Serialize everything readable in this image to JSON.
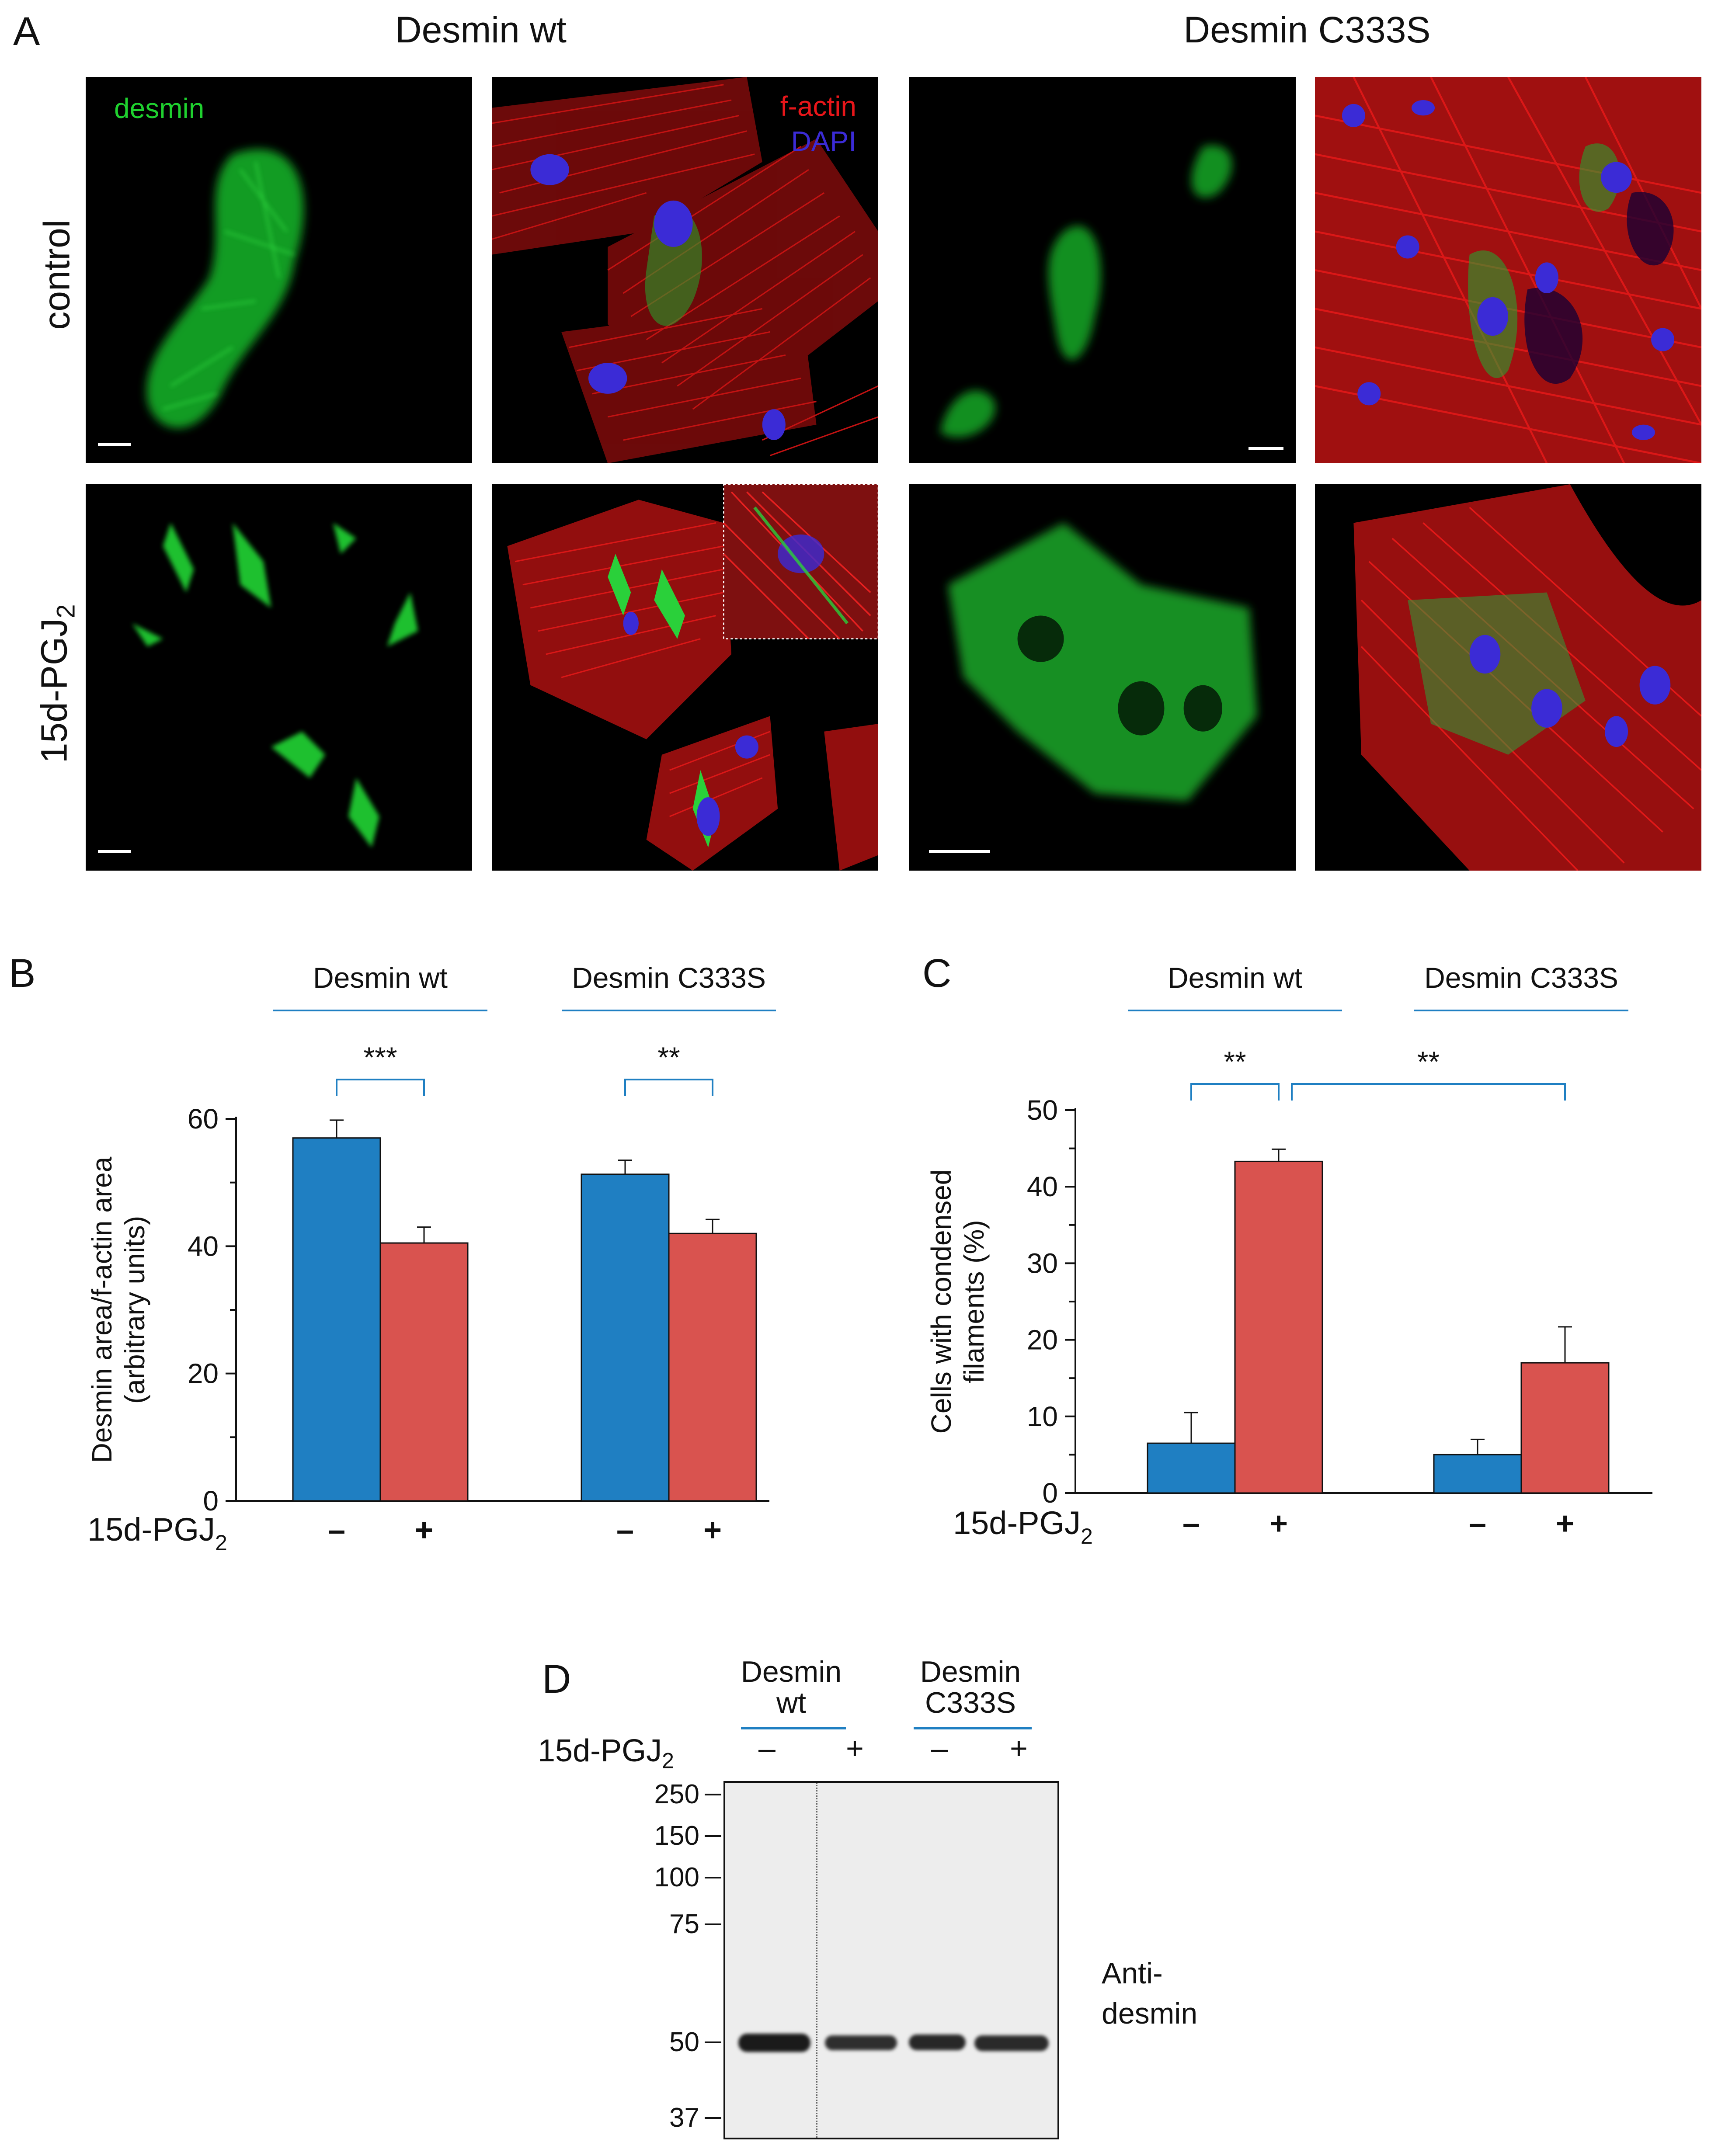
{
  "panels": {
    "A": "A",
    "B": "B",
    "C": "C",
    "D": "D"
  },
  "panelA": {
    "col_headers": [
      "Desmin wt",
      "Desmin C333S"
    ],
    "row_headers": [
      "control",
      "15d-PGJ"
    ],
    "row_sub": "2",
    "stain_labels": {
      "desmin": "desmin",
      "factin": "f-actin",
      "dapi": "DAPI"
    },
    "colors": {
      "green": "#1fd12f",
      "red": "#e8161a",
      "blue": "#3b2bd6"
    }
  },
  "chart_data": [
    {
      "id": "B",
      "type": "bar",
      "group_labels": [
        "Desmin wt",
        "Desmin C333S"
      ],
      "ylabel": "Desmin area/f-actin area (arbitrary units)",
      "ylabel_lines": [
        "Desmin area/f-actin area",
        "(arbitrary units)"
      ],
      "ylim": [
        0,
        60
      ],
      "yticks": [
        0,
        20,
        40,
        60
      ],
      "treatment_label": "15d-PGJ",
      "treatment_sub": "2",
      "categories": [
        "–",
        "+",
        "–",
        "+"
      ],
      "values": [
        57,
        40.5,
        51.3,
        42
      ],
      "errors": [
        2.8,
        2.5,
        2.2,
        2.2
      ],
      "colors": [
        "#1f7fc2",
        "#d9534f",
        "#1f7fc2",
        "#d9534f"
      ],
      "significance": [
        {
          "from": 0,
          "to": 1,
          "label": "***"
        },
        {
          "from": 2,
          "to": 3,
          "label": "**"
        }
      ]
    },
    {
      "id": "C",
      "type": "bar",
      "group_labels": [
        "Desmin wt",
        "Desmin C333S"
      ],
      "ylabel": "Cells with condensed filaments (%)",
      "ylabel_lines": [
        "Cells with condensed",
        "filaments (%)"
      ],
      "ylim": [
        0,
        50
      ],
      "yticks": [
        0,
        10,
        20,
        30,
        40,
        50
      ],
      "treatment_label": "15d-PGJ",
      "treatment_sub": "2",
      "categories": [
        "–",
        "+",
        "–",
        "+"
      ],
      "values": [
        6.5,
        43.3,
        5,
        17
      ],
      "errors": [
        4,
        1.6,
        2,
        4.7
      ],
      "colors": [
        "#1f7fc2",
        "#d9534f",
        "#1f7fc2",
        "#d9534f"
      ],
      "significance": [
        {
          "from": 0,
          "to": 1,
          "label": "**"
        },
        {
          "from": 1,
          "to": 3,
          "label": "**"
        }
      ]
    }
  ],
  "panelD": {
    "group_labels": [
      [
        "Desmin",
        "wt"
      ],
      [
        "Desmin",
        "C333S"
      ]
    ],
    "treatment_label": "15d-PGJ",
    "treatment_sub": "2",
    "lanes": [
      "–",
      "+",
      "–",
      "+"
    ],
    "markers": [
      "250",
      "150",
      "100",
      "75",
      "50",
      "37"
    ],
    "antibody_lines": [
      "Anti-",
      "desmin"
    ]
  }
}
